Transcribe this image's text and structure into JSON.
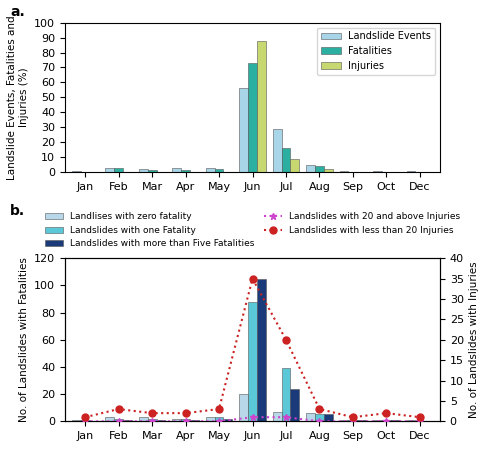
{
  "chart_data": [
    {
      "type": "bar",
      "annotation": "a.",
      "categories": [
        "Jan",
        "Feb",
        "Mar",
        "Apr",
        "May",
        "Jun",
        "Jul",
        "Aug",
        "Sep",
        "Oct",
        "Dec"
      ],
      "series": [
        {
          "name": "Landslide Events",
          "color": "#A8D5E8",
          "values": [
            0.5,
            2.5,
            2.0,
            2.5,
            2.5,
            56,
            29,
            5,
            0.5,
            0.5,
            0.5
          ]
        },
        {
          "name": "Fatalities",
          "color": "#2AAFA0",
          "values": [
            0.3,
            2.5,
            1.5,
            1.5,
            2.0,
            73,
            16,
            4,
            0.3,
            0.3,
            0.3
          ]
        },
        {
          "name": "Injuries",
          "color": "#C8D870",
          "values": [
            0.3,
            0.3,
            0.3,
            0.3,
            0.3,
            88,
            9,
            2,
            0.3,
            0.3,
            0.3
          ]
        }
      ],
      "ylabel": "Landslide Events, Fatalities and\nInjuries (%)",
      "ylim": [
        0,
        100
      ],
      "yticks": [
        0,
        10,
        20,
        30,
        40,
        50,
        60,
        70,
        80,
        90,
        100
      ],
      "legend": "upper right"
    },
    {
      "type": "bar",
      "annotation": "b.",
      "categories": [
        "Jan",
        "Feb",
        "Mar",
        "Apr",
        "May",
        "Jun",
        "Jul",
        "Aug",
        "Sep",
        "Oct",
        "Dec"
      ],
      "series": [
        {
          "name": "Landlises with zero fatality",
          "type": "bar",
          "color": "#B8D8EA",
          "values": [
            1,
            3,
            3,
            2,
            3,
            20,
            7,
            6,
            1,
            1,
            1
          ]
        },
        {
          "name": "Landslides with one Fatality",
          "type": "bar",
          "color": "#5BC8D8",
          "values": [
            1,
            2,
            2,
            2,
            3,
            88,
            39,
            5,
            1,
            1,
            0
          ]
        },
        {
          "name": "Landslides with more than Five Fatalities",
          "type": "bar",
          "color": "#1A3A7A",
          "values": [
            0,
            1,
            1,
            1,
            2,
            105,
            24,
            5,
            1,
            1,
            0
          ]
        },
        {
          "name": "Landslides with 20 and above Injuries",
          "type": "line",
          "axis": "y2",
          "marker": "star",
          "line_style": "dotted",
          "color": "#CC44CC",
          "values": [
            0,
            0,
            0,
            0,
            0,
            1,
            1,
            0,
            0,
            0,
            0
          ]
        },
        {
          "name": "Landslides with less than 20 Injuries",
          "type": "line",
          "axis": "y2",
          "marker": "circle",
          "line_style": "dotted",
          "color": "#CC2222",
          "values": [
            1,
            3,
            2,
            2,
            3,
            35,
            20,
            3,
            1,
            2,
            1
          ]
        }
      ],
      "ylabel": "No. of Landslides with Fatalities",
      "y2label": "No. of Landslides with Injuries",
      "ylim": [
        0,
        120
      ],
      "yticks": [
        0,
        20,
        40,
        60,
        80,
        100,
        120
      ],
      "y2lim": [
        0,
        40
      ],
      "y2ticks": [
        0,
        5,
        10,
        15,
        20,
        25,
        30,
        35,
        40
      ],
      "legend": "upper center"
    }
  ]
}
